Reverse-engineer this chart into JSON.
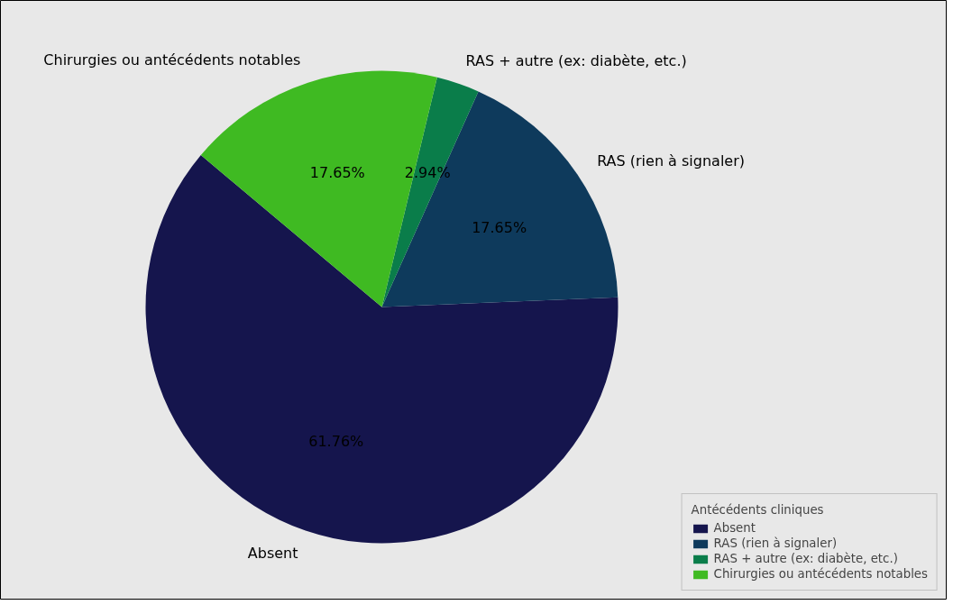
{
  "chart_data": {
    "type": "pie",
    "legend_title": "Antécédents cliniques",
    "legend": "bottom right",
    "categories": [
      "Absent",
      "RAS (rien à signaler)",
      "RAS + autre (ex: diabète, etc.)",
      "Chirurgies ou antécédents notables"
    ],
    "values": [
      61.76,
      17.65,
      2.94,
      17.65
    ],
    "value_labels": [
      "61.76%",
      "17.65%",
      "2.94%",
      "17.65%"
    ],
    "colors": [
      "#15154d",
      "#0e3a5c",
      "#0a7d4a",
      "#3fba22"
    ]
  }
}
